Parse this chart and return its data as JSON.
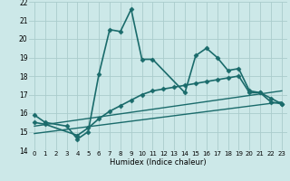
{
  "xlabel": "Humidex (Indice chaleur)",
  "bg_color": "#cce8e8",
  "grid_color": "#aacccc",
  "line_color": "#1a6b6b",
  "xlim": [
    -0.5,
    23.5
  ],
  "ylim": [
    14,
    22
  ],
  "xticks": [
    0,
    1,
    2,
    3,
    4,
    5,
    6,
    7,
    8,
    9,
    10,
    11,
    12,
    13,
    14,
    15,
    16,
    17,
    18,
    19,
    20,
    21,
    22,
    23
  ],
  "yticks": [
    14,
    15,
    16,
    17,
    18,
    19,
    20,
    21,
    22
  ],
  "series": [
    {
      "x": [
        0,
        1,
        3,
        4,
        5,
        6,
        7,
        8,
        9,
        10,
        11,
        14,
        15,
        16,
        17,
        18,
        19,
        20,
        21,
        22,
        23
      ],
      "y": [
        15.9,
        15.5,
        15.3,
        14.6,
        15.0,
        18.1,
        20.5,
        20.4,
        21.6,
        18.9,
        18.9,
        17.1,
        19.1,
        19.5,
        19.0,
        18.3,
        18.4,
        17.2,
        17.1,
        16.8,
        16.5
      ],
      "marker": "D",
      "markersize": 2.5,
      "linewidth": 1.2
    },
    {
      "x": [
        0,
        1,
        4,
        5,
        6,
        7,
        8,
        9,
        10,
        11,
        12,
        13,
        14,
        15,
        16,
        17,
        18,
        19,
        20,
        21,
        22,
        23
      ],
      "y": [
        15.5,
        15.4,
        14.8,
        15.2,
        15.7,
        16.1,
        16.4,
        16.7,
        17.0,
        17.2,
        17.3,
        17.4,
        17.5,
        17.6,
        17.7,
        17.8,
        17.9,
        18.0,
        17.1,
        17.1,
        16.6,
        16.5
      ],
      "marker": "D",
      "markersize": 2.5,
      "linewidth": 1.2
    },
    {
      "x": [
        0,
        23
      ],
      "y": [
        15.3,
        17.2
      ],
      "marker": null,
      "linewidth": 1.0
    },
    {
      "x": [
        0,
        23
      ],
      "y": [
        14.9,
        16.6
      ],
      "marker": null,
      "linewidth": 1.0
    }
  ]
}
